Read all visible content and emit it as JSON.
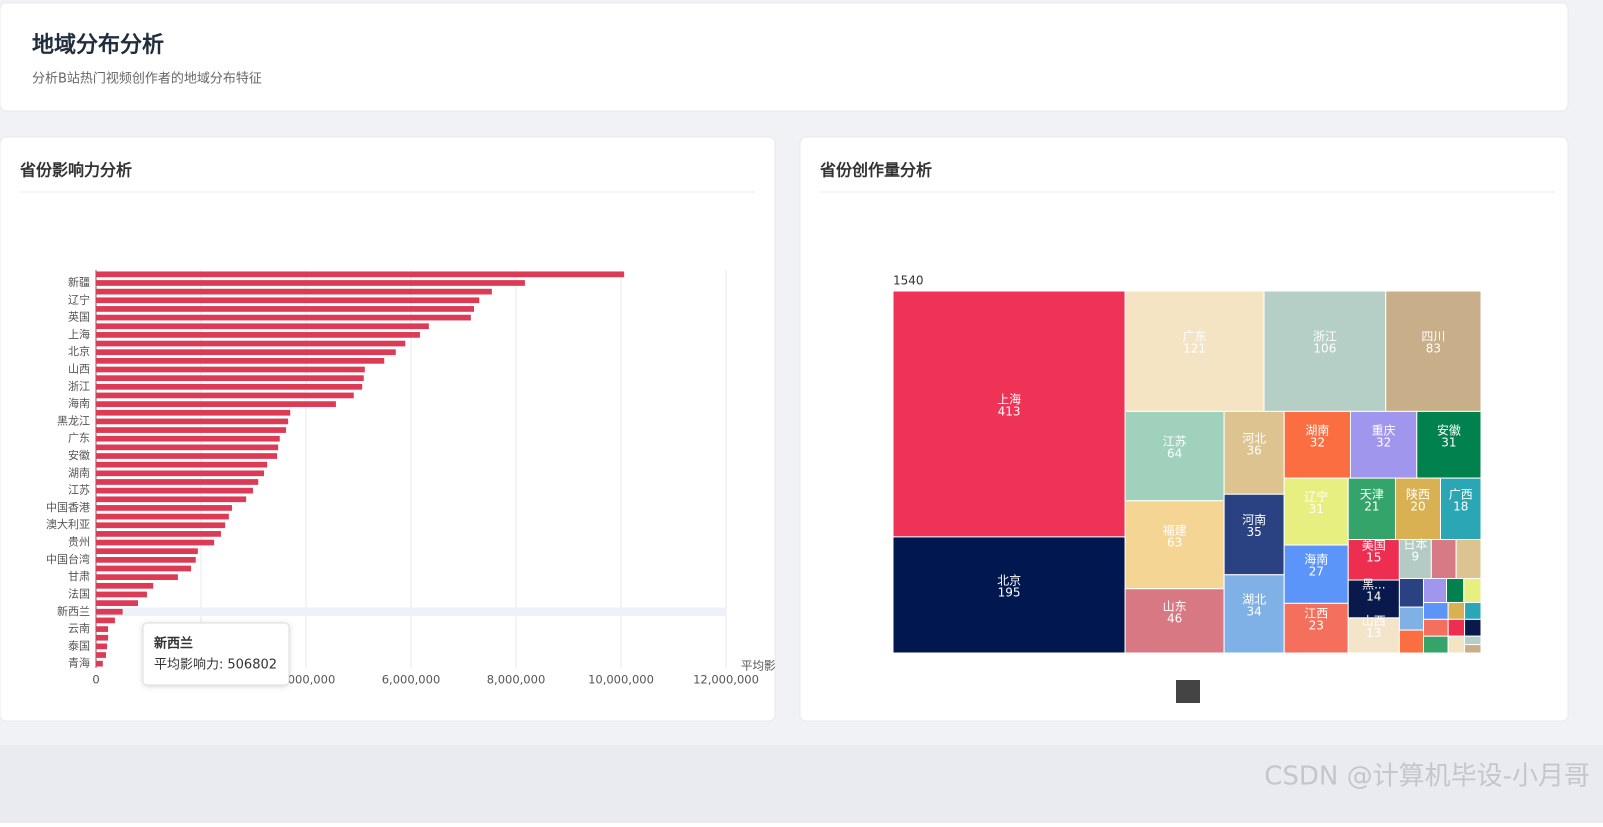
{
  "header": {
    "title": "地域分布分析",
    "subtitle": "分析B站热门视频创作者的地域分布特征"
  },
  "watermark": "CSDN @计算机毕设-小月哥",
  "chart_data": [
    {
      "type": "bar",
      "orientation": "horizontal",
      "title": "省份影响力分析",
      "categories": [
        null,
        "新疆",
        null,
        "辽宁",
        null,
        "英国",
        null,
        "上海",
        null,
        "北京",
        null,
        "山西",
        null,
        "浙江",
        null,
        "海南",
        null,
        "黑龙江",
        null,
        "广东",
        null,
        "安徽",
        null,
        "湖南",
        null,
        "江苏",
        null,
        "中国香港",
        null,
        "澳大利亚",
        null,
        "贵州",
        null,
        "中国台湾",
        null,
        "甘肃",
        null,
        "法国",
        null,
        "新西兰",
        null,
        "云南",
        null,
        "泰国",
        null,
        "青海"
      ],
      "values": [
        10060000,
        8170000,
        7540000,
        7300000,
        7200000,
        7140000,
        6340000,
        6170000,
        5890000,
        5710000,
        5490000,
        5120000,
        5100000,
        5070000,
        4910000,
        4570000,
        3700000,
        3660000,
        3620000,
        3500000,
        3470000,
        3450000,
        3260000,
        3200000,
        3090000,
        2990000,
        2860000,
        2590000,
        2530000,
        2460000,
        2380000,
        2250000,
        1940000,
        1900000,
        1810000,
        1560000,
        1090000,
        970000,
        800000,
        506802,
        360000,
        230000,
        230000,
        210000,
        190000,
        130000
      ],
      "color": "#dc3a55",
      "x_label": "平均影响力",
      "xlim": [
        0,
        12000000
      ],
      "xticks": [
        0,
        {
          "value": 2000000,
          "label": "2,000,000"
        },
        {
          "value": 4000000,
          "label": "4,000,000"
        },
        {
          "value": 6000000,
          "label": "6,000,000"
        },
        {
          "value": 8000000,
          "label": "8,000,000"
        },
        {
          "value": 10000000,
          "label": "10,000,000"
        },
        {
          "value": 12000000,
          "label": "12,000,000"
        }
      ],
      "grid": true,
      "tooltip_index": 39,
      "tooltip_label": "平均影响力:"
    },
    {
      "type": "treemap",
      "title": "省份创作量分析",
      "total": 1540,
      "categories": [
        "上海",
        "北京",
        "广东",
        "浙江",
        "四川",
        "江苏",
        "福建",
        "山东",
        "河北",
        "河南",
        "湖北",
        "湖南",
        "重庆",
        "安徽",
        "辽宁",
        "海南",
        "江西",
        "天津",
        "陕西",
        "广西",
        "美国",
        "黑...",
        "山西",
        "日本",
        null,
        null,
        null,
        null,
        null,
        null,
        null,
        null,
        null,
        null,
        null,
        null,
        null,
        null,
        null,
        null,
        null,
        null
      ],
      "values": [
        413,
        195,
        121,
        106,
        83,
        64,
        63,
        46,
        36,
        35,
        34,
        32,
        32,
        31,
        31,
        27,
        23,
        21,
        20,
        18,
        15,
        14,
        13,
        9,
        7,
        7,
        5,
        4,
        4,
        4,
        3,
        3,
        3,
        3,
        3,
        2,
        2,
        2,
        2,
        2,
        1,
        1
      ],
      "colors": [
        "#ef3356",
        "#00184f",
        "#f5e4c4",
        "#b5cfc6",
        "#c8ae89",
        "#a0d1bd",
        "#f5d594",
        "#d87883",
        "#dcc38f",
        "#2a4282",
        "#80b1e6",
        "#fb6e41",
        "#a096ee",
        "#00814e",
        "#e8ef81",
        "#5b95f9",
        "#f4705d",
        "#35a46a",
        "#d9b152",
        "#2ba6b4",
        "#ee2e51",
        "#09194c",
        "#f4e4c9",
        "#b3cbc4",
        "#d77a85",
        "#dcc38f",
        "#2a4282",
        "#80b1e6",
        "#fb6e41",
        "#a096ee",
        "#00814e",
        "#e8ef81",
        "#5b95f9",
        "#f4705d",
        "#35a46a",
        "#d9b152",
        "#2ba6b4",
        "#ee2e51",
        "#09194c",
        "#f5e4c4",
        "#b5cfc6",
        "#c8ae89"
      ]
    }
  ]
}
